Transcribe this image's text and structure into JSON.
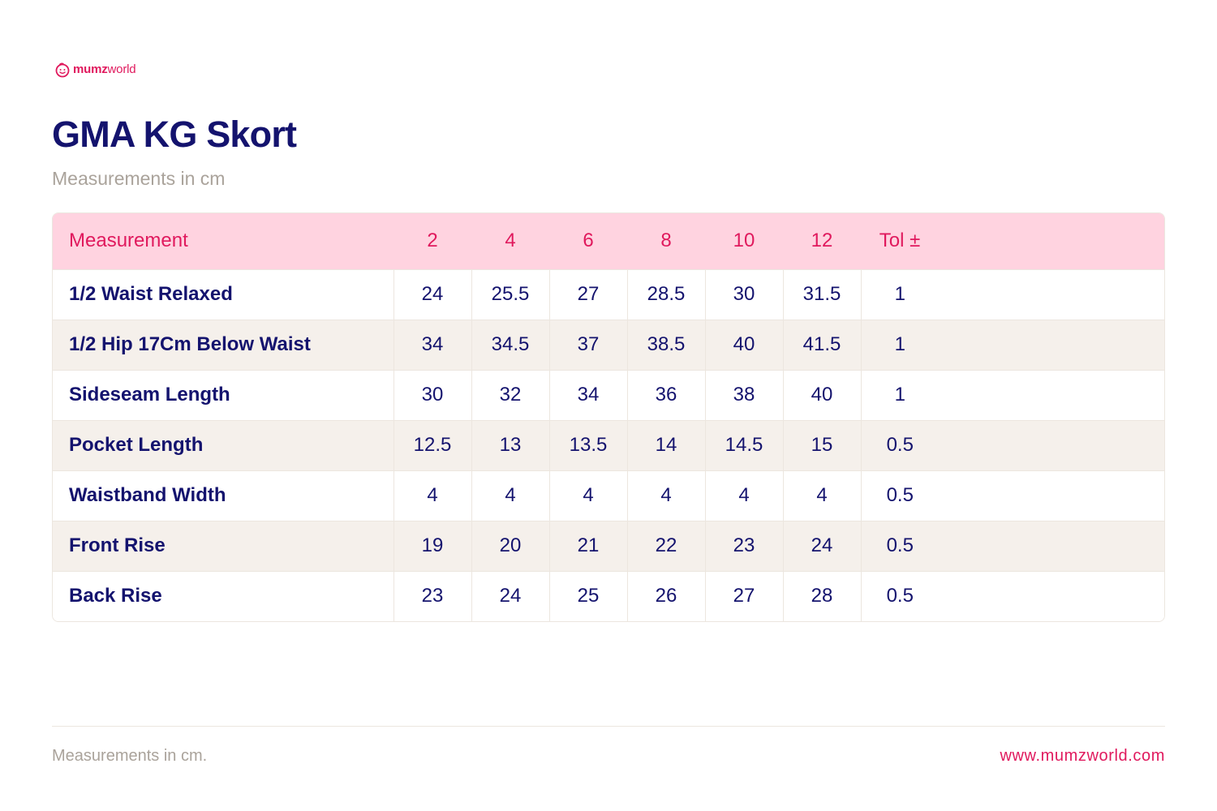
{
  "brand": {
    "logo_bold": "mumz",
    "logo_light": "world",
    "icon": "smiley-face-icon",
    "accent_color": "#e0195d",
    "title_color": "#14136e"
  },
  "header": {
    "title": "GMA KG Skort",
    "subtitle": "Measurements in cm"
  },
  "table": {
    "columns": [
      "Measurement",
      "2",
      "4",
      "6",
      "8",
      "10",
      "12",
      "Tol ±"
    ],
    "rows": [
      {
        "name": "1/2 Waist Relaxed",
        "values": [
          "24",
          "25.5",
          "27",
          "28.5",
          "30",
          "31.5"
        ],
        "tol": "1"
      },
      {
        "name": "1/2 Hip 17Cm Below Waist",
        "values": [
          "34",
          "34.5",
          "37",
          "38.5",
          "40",
          "41.5"
        ],
        "tol": "1"
      },
      {
        "name": "Sideseam Length",
        "values": [
          "30",
          "32",
          "34",
          "36",
          "38",
          "40"
        ],
        "tol": "1"
      },
      {
        "name": "Pocket Length",
        "values": [
          "12.5",
          "13",
          "13.5",
          "14",
          "14.5",
          "15"
        ],
        "tol": "0.5"
      },
      {
        "name": "Waistband Width",
        "values": [
          "4",
          "4",
          "4",
          "4",
          "4",
          "4"
        ],
        "tol": "0.5"
      },
      {
        "name": "Front Rise",
        "values": [
          "19",
          "20",
          "21",
          "22",
          "23",
          "24"
        ],
        "tol": "0.5"
      },
      {
        "name": "Back Rise",
        "values": [
          "23",
          "24",
          "25",
          "26",
          "27",
          "28"
        ],
        "tol": "0.5"
      }
    ]
  },
  "footer": {
    "note": "Measurements in cm.",
    "website": "www.mumzworld.com"
  }
}
